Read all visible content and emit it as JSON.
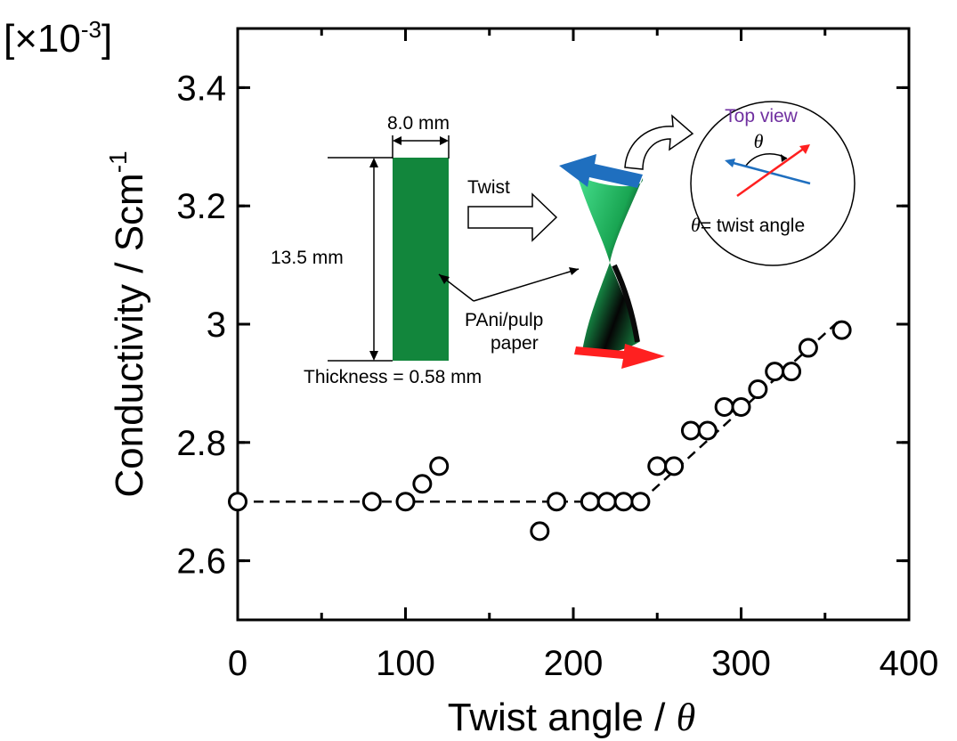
{
  "chart_data": {
    "type": "scatter",
    "xlabel_text": "Twist angle / ",
    "xlabel_symbol": "θ",
    "ylabel_text": "Conductivity / Scm",
    "ylabel_sup": "-1",
    "multiplier_open": "[×10",
    "multiplier_sup": "-3",
    "multiplier_close": "]",
    "xlim": [
      0,
      400
    ],
    "ylim": [
      2.5,
      3.5
    ],
    "x_ticks": [
      0,
      100,
      200,
      300,
      400
    ],
    "y_ticks": [
      2.6,
      2.8,
      3,
      3.2,
      3.4
    ],
    "y_tick_labels": [
      "2.6",
      "2.8",
      "3",
      "3.2",
      "3.4"
    ],
    "grid": false,
    "series": [
      {
        "marker": "open-circle",
        "color": "#000000",
        "x": [
          0,
          80,
          100,
          110,
          120,
          180,
          190,
          210,
          220,
          230,
          240,
          250,
          260,
          270,
          280,
          290,
          300,
          310,
          320,
          330,
          340,
          360
        ],
        "y": [
          2.7,
          2.7,
          2.7,
          2.73,
          2.76,
          2.65,
          2.7,
          2.7,
          2.7,
          2.7,
          2.7,
          2.76,
          2.76,
          2.82,
          2.82,
          2.86,
          2.86,
          2.89,
          2.92,
          2.92,
          2.96,
          2.99
        ]
      }
    ],
    "fit_lines": [
      {
        "style": "dashed",
        "x": [
          0,
          240
        ],
        "y": [
          2.7,
          2.7
        ]
      },
      {
        "style": "dashed",
        "x": [
          240,
          360
        ],
        "y": [
          2.7,
          3.01
        ]
      }
    ]
  },
  "inset": {
    "width_label": "8.0 mm",
    "height_label": "13.5 mm",
    "thickness_label": "Thickness = 0.58 mm",
    "twist_label": "Twist",
    "material_line1": "PAni/pulp",
    "material_line2": "paper",
    "top_view_label": "Top view",
    "theta_symbol": "θ",
    "twist_angle_label": "= twist angle",
    "strip_color": "#12863c",
    "twisted_color_light": "#3ddc84",
    "arrow_blue": "#1f6fbf",
    "arrow_red": "#ff2020",
    "top_view_color": "#7030a0"
  }
}
